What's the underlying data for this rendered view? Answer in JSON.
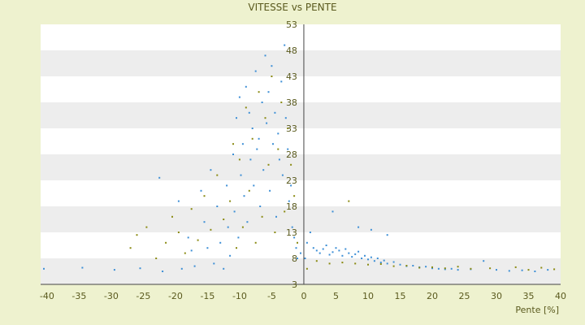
{
  "chart_data": {
    "type": "scatter",
    "title": "VITESSE vs PENTE",
    "xlabel": "Pente [%]",
    "ylabel": "",
    "xlim": [
      -41,
      40
    ],
    "ylim": [
      3,
      53
    ],
    "x_ticks": [
      -40,
      -35,
      -30,
      -25,
      -20,
      -15,
      -10,
      -5,
      0,
      5,
      10,
      15,
      20,
      25,
      30,
      35,
      40
    ],
    "y_ticks": [
      3,
      8,
      13,
      18,
      23,
      28,
      33,
      38,
      43,
      48,
      53
    ],
    "grid": "alternating horizontal bands",
    "legend": "none",
    "colors": {
      "blue": "#3d8fd6",
      "olive": "#8a8a12",
      "band": "#ededed",
      "plot_bg": "#ffffff",
      "axis": "#5a5a1e"
    },
    "series": [
      {
        "marker_color": "#3d8fd6",
        "points": [
          [
            -40.5,
            6
          ],
          [
            -34.5,
            6.2
          ],
          [
            -29.5,
            5.8
          ],
          [
            -25.5,
            6.1
          ],
          [
            -22.5,
            23.5
          ],
          [
            -22,
            5.5
          ],
          [
            -19.5,
            19
          ],
          [
            -19,
            6
          ],
          [
            -18,
            12
          ],
          [
            -17.5,
            9.5
          ],
          [
            -17,
            6.5
          ],
          [
            -16,
            21
          ],
          [
            -15.5,
            15
          ],
          [
            -15,
            10
          ],
          [
            -14.5,
            25
          ],
          [
            -14,
            7
          ],
          [
            -13.5,
            18
          ],
          [
            -13,
            11
          ],
          [
            -12.5,
            6
          ],
          [
            -12,
            22
          ],
          [
            -11.8,
            14
          ],
          [
            -11.5,
            8.5
          ],
          [
            -11,
            28
          ],
          [
            -10.8,
            17
          ],
          [
            -10.5,
            35
          ],
          [
            -10.2,
            12
          ],
          [
            -10,
            39
          ],
          [
            -9.8,
            24
          ],
          [
            -9.5,
            30
          ],
          [
            -9.3,
            20
          ],
          [
            -9,
            41
          ],
          [
            -8.8,
            15
          ],
          [
            -8.5,
            36
          ],
          [
            -8.3,
            27
          ],
          [
            -8,
            33
          ],
          [
            -7.8,
            22
          ],
          [
            -7.5,
            44
          ],
          [
            -7.3,
            29
          ],
          [
            -7,
            31
          ],
          [
            -6.8,
            18
          ],
          [
            -6.5,
            38
          ],
          [
            -6.3,
            25
          ],
          [
            -6,
            47
          ],
          [
            -5.8,
            34
          ],
          [
            -5.5,
            40
          ],
          [
            -5.3,
            21
          ],
          [
            -5,
            45
          ],
          [
            -4.8,
            30
          ],
          [
            -4.5,
            36
          ],
          [
            -4.3,
            16
          ],
          [
            -4,
            32
          ],
          [
            -3.8,
            27
          ],
          [
            -3.5,
            42
          ],
          [
            -3.3,
            24
          ],
          [
            -3,
            49
          ],
          [
            -2.8,
            35
          ],
          [
            -2.5,
            29
          ],
          [
            -2.3,
            19
          ],
          [
            -2,
            22
          ],
          [
            -1.8,
            14
          ],
          [
            -1.5,
            12
          ],
          [
            -1.2,
            10
          ],
          [
            -1,
            8
          ],
          [
            -0.5,
            9
          ],
          [
            0.2,
            8
          ],
          [
            0.5,
            11
          ],
          [
            1,
            13
          ],
          [
            1.5,
            10
          ],
          [
            2,
            9.5
          ],
          [
            2.5,
            9
          ],
          [
            3,
            9.8
          ],
          [
            3.5,
            10.5
          ],
          [
            4,
            8.7
          ],
          [
            4.5,
            9.2
          ],
          [
            5,
            10
          ],
          [
            5.5,
            9.5
          ],
          [
            6,
            8.5
          ],
          [
            6.5,
            9.8
          ],
          [
            7,
            9
          ],
          [
            7.5,
            8.3
          ],
          [
            8,
            8.8
          ],
          [
            8.5,
            9.3
          ],
          [
            9,
            8
          ],
          [
            9.5,
            8.5
          ],
          [
            10,
            7.8
          ],
          [
            10.5,
            8.2
          ],
          [
            11,
            7.5
          ],
          [
            11.5,
            8
          ],
          [
            12,
            7.2
          ],
          [
            12.5,
            7.6
          ],
          [
            13,
            7
          ],
          [
            14,
            7.3
          ],
          [
            15,
            6.8
          ],
          [
            16,
            6.5
          ],
          [
            17,
            6.6
          ],
          [
            18,
            6.3
          ],
          [
            19,
            6.4
          ],
          [
            20,
            6.1
          ],
          [
            21,
            6
          ],
          [
            22,
            5.9
          ],
          [
            23,
            6
          ],
          [
            24,
            5.8
          ],
          [
            26,
            5.9
          ],
          [
            28,
            7.5
          ],
          [
            30,
            5.8
          ],
          [
            32,
            5.6
          ],
          [
            34,
            5.7
          ],
          [
            36,
            5.5
          ],
          [
            38,
            5.8
          ],
          [
            4.5,
            17
          ],
          [
            8.5,
            14
          ],
          [
            10.5,
            13.5
          ],
          [
            13,
            12.5
          ]
        ]
      },
      {
        "marker_color": "#8a8a12",
        "points": [
          [
            -27,
            10
          ],
          [
            -26,
            12.5
          ],
          [
            -24.5,
            14
          ],
          [
            -23,
            8
          ],
          [
            -21.5,
            11
          ],
          [
            -20.5,
            16
          ],
          [
            -19.5,
            13
          ],
          [
            -18.5,
            9
          ],
          [
            -17.5,
            17.5
          ],
          [
            -16.5,
            11.5
          ],
          [
            -15.5,
            20
          ],
          [
            -14.5,
            13.5
          ],
          [
            -13.5,
            24
          ],
          [
            -12.5,
            15.5
          ],
          [
            -11.5,
            19
          ],
          [
            -11,
            30
          ],
          [
            -10.5,
            10
          ],
          [
            -10,
            27
          ],
          [
            -9.5,
            14
          ],
          [
            -9,
            37
          ],
          [
            -8.5,
            21
          ],
          [
            -8,
            31
          ],
          [
            -7.5,
            11
          ],
          [
            -7,
            40
          ],
          [
            -6.5,
            16
          ],
          [
            -6,
            35
          ],
          [
            -5.5,
            26
          ],
          [
            -5,
            43
          ],
          [
            -4.5,
            13
          ],
          [
            -4,
            29
          ],
          [
            -3.5,
            38
          ],
          [
            -3,
            17
          ],
          [
            -2.5,
            33
          ],
          [
            -2,
            26
          ],
          [
            -1.5,
            20
          ],
          [
            -1,
            11
          ],
          [
            0.5,
            6
          ],
          [
            2,
            7.5
          ],
          [
            4,
            7
          ],
          [
            6,
            7.2
          ],
          [
            8,
            7
          ],
          [
            10,
            6.8
          ],
          [
            12,
            6.9
          ],
          [
            14,
            6.5
          ],
          [
            16,
            6.6
          ],
          [
            18,
            6.2
          ],
          [
            20,
            6.3
          ],
          [
            22,
            6.1
          ],
          [
            24,
            6.4
          ],
          [
            26,
            6
          ],
          [
            29,
            6.1
          ],
          [
            33,
            6.3
          ],
          [
            35,
            5.8
          ],
          [
            37,
            6.2
          ],
          [
            39,
            5.9
          ],
          [
            7,
            19
          ]
        ]
      }
    ]
  }
}
